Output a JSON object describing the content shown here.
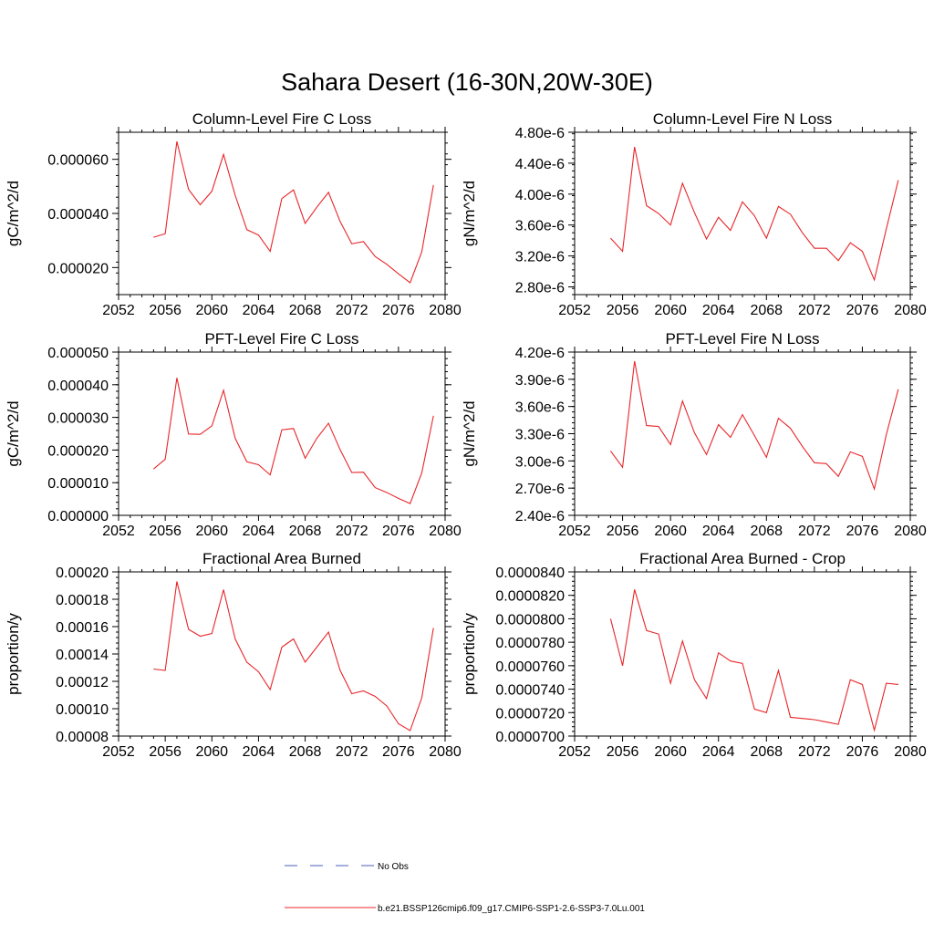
{
  "page_title": "Sahara Desert (16-30N,20W-30E)",
  "legend": [
    {
      "label": "No Obs",
      "color": "#4a5fc1",
      "dash": "dashed"
    },
    {
      "label": "b.e21.BSSP126cmip6.f09_g17.CMIP6-SSP1-2.6-SSP3-7.0Lu.001",
      "color": "#e8262a",
      "dash": "solid"
    }
  ],
  "chart_data": [
    {
      "type": "line",
      "title": "Column-Level Fire C Loss",
      "ylabel": "gC/m^2/d",
      "xlim": [
        2052,
        2080
      ],
      "ylim": [
        1e-05,
        7e-05
      ],
      "x_ticks": [
        "2052",
        "2056",
        "2060",
        "2064",
        "2068",
        "2072",
        "2076",
        "2080"
      ],
      "y_ticks": [
        {
          "v": 2e-05,
          "label": "0.000020"
        },
        {
          "v": 4e-05,
          "label": "0.000040"
        },
        {
          "v": 6e-05,
          "label": "0.000060"
        }
      ],
      "x": [
        2055,
        2056,
        2057,
        2058,
        2059,
        2060,
        2061,
        2062,
        2063,
        2064,
        2065,
        2066,
        2067,
        2068,
        2069,
        2070,
        2071,
        2072,
        2073,
        2074,
        2075,
        2076,
        2077,
        2078,
        2079
      ],
      "series": [
        {
          "color": "#e8262a",
          "values": [
            3.12e-05,
            3.25e-05,
            6.66e-05,
            4.89e-05,
            4.32e-05,
            4.82e-05,
            6.18e-05,
            4.67e-05,
            3.4e-05,
            3.2e-05,
            2.6e-05,
            4.55e-05,
            4.87e-05,
            3.63e-05,
            4.23e-05,
            4.78e-05,
            3.7e-05,
            2.88e-05,
            2.96e-05,
            2.41e-05,
            2.12e-05,
            1.77e-05,
            1.44e-05,
            2.58e-05,
            5.05e-05
          ]
        }
      ]
    },
    {
      "type": "line",
      "title": "Column-Level Fire N Loss",
      "ylabel": "gN/m^2/d",
      "xlim": [
        2052,
        2080
      ],
      "ylim": [
        2.7e-06,
        4.8e-06
      ],
      "x_ticks": [
        "2052",
        "2056",
        "2060",
        "2064",
        "2068",
        "2072",
        "2076",
        "2080"
      ],
      "y_ticks": [
        {
          "v": 2.8e-06,
          "label": "2.80e-6"
        },
        {
          "v": 3.2e-06,
          "label": "3.20e-6"
        },
        {
          "v": 3.6e-06,
          "label": "3.60e-6"
        },
        {
          "v": 4e-06,
          "label": "4.00e-6"
        },
        {
          "v": 4.4e-06,
          "label": "4.40e-6"
        },
        {
          "v": 4.8e-06,
          "label": "4.80e-6"
        }
      ],
      "x": [
        2055,
        2056,
        2057,
        2058,
        2059,
        2060,
        2061,
        2062,
        2063,
        2064,
        2065,
        2066,
        2067,
        2068,
        2069,
        2070,
        2071,
        2072,
        2073,
        2074,
        2075,
        2076,
        2077,
        2078,
        2079
      ],
      "series": [
        {
          "color": "#e8262a",
          "values": [
            3.43e-06,
            3.26e-06,
            4.61e-06,
            3.85e-06,
            3.75e-06,
            3.6e-06,
            4.14e-06,
            3.76e-06,
            3.42e-06,
            3.7e-06,
            3.53e-06,
            3.9e-06,
            3.72e-06,
            3.43e-06,
            3.84e-06,
            3.74e-06,
            3.5e-06,
            3.3e-06,
            3.3e-06,
            3.14e-06,
            3.37e-06,
            3.26e-06,
            2.89e-06,
            3.55e-06,
            4.18e-06
          ]
        }
      ]
    },
    {
      "type": "line",
      "title": "PFT-Level Fire C Loss",
      "ylabel": "gC/m^2/d",
      "xlim": [
        2052,
        2080
      ],
      "ylim": [
        0.0,
        5e-05
      ],
      "x_ticks": [
        "2052",
        "2056",
        "2060",
        "2064",
        "2068",
        "2072",
        "2076",
        "2080"
      ],
      "y_ticks": [
        {
          "v": 0.0,
          "label": "0.000000"
        },
        {
          "v": 1e-05,
          "label": "0.000010"
        },
        {
          "v": 2e-05,
          "label": "0.000020"
        },
        {
          "v": 3e-05,
          "label": "0.000030"
        },
        {
          "v": 4e-05,
          "label": "0.000040"
        },
        {
          "v": 5e-05,
          "label": "0.000050"
        }
      ],
      "x": [
        2055,
        2056,
        2057,
        2058,
        2059,
        2060,
        2061,
        2062,
        2063,
        2064,
        2065,
        2066,
        2067,
        2068,
        2069,
        2070,
        2071,
        2072,
        2073,
        2074,
        2075,
        2076,
        2077,
        2078,
        2079
      ],
      "series": [
        {
          "color": "#e8262a",
          "values": [
            1.42e-05,
            1.72e-05,
            4.21e-05,
            2.49e-05,
            2.48e-05,
            2.74e-05,
            3.83e-05,
            2.36e-05,
            1.64e-05,
            1.55e-05,
            1.24e-05,
            2.62e-05,
            2.66e-05,
            1.75e-05,
            2.36e-05,
            2.82e-05,
            2.01e-05,
            1.31e-05,
            1.32e-05,
            8.5e-06,
            7e-06,
            5.2e-06,
            3.6e-06,
            1.3e-05,
            3.05e-05
          ]
        }
      ]
    },
    {
      "type": "line",
      "title": "PFT-Level Fire N Loss",
      "ylabel": "gN/m^2/d",
      "xlim": [
        2052,
        2080
      ],
      "ylim": [
        2.4e-06,
        4.2e-06
      ],
      "x_ticks": [
        "2052",
        "2056",
        "2060",
        "2064",
        "2068",
        "2072",
        "2076",
        "2080"
      ],
      "y_ticks": [
        {
          "v": 2.4e-06,
          "label": "2.40e-6"
        },
        {
          "v": 2.7e-06,
          "label": "2.70e-6"
        },
        {
          "v": 3e-06,
          "label": "3.00e-6"
        },
        {
          "v": 3.3e-06,
          "label": "3.30e-6"
        },
        {
          "v": 3.6e-06,
          "label": "3.60e-6"
        },
        {
          "v": 3.9e-06,
          "label": "3.90e-6"
        },
        {
          "v": 4.2e-06,
          "label": "4.20e-6"
        }
      ],
      "x": [
        2055,
        2056,
        2057,
        2058,
        2059,
        2060,
        2061,
        2062,
        2063,
        2064,
        2065,
        2066,
        2067,
        2068,
        2069,
        2070,
        2071,
        2072,
        2073,
        2074,
        2075,
        2076,
        2077,
        2078,
        2079
      ],
      "series": [
        {
          "color": "#e8262a",
          "values": [
            3.11e-06,
            2.93e-06,
            4.1e-06,
            3.39e-06,
            3.38e-06,
            3.18e-06,
            3.66e-06,
            3.31e-06,
            3.07e-06,
            3.4e-06,
            3.26e-06,
            3.51e-06,
            3.28e-06,
            3.04e-06,
            3.47e-06,
            3.36e-06,
            3.16e-06,
            2.98e-06,
            2.97e-06,
            2.83e-06,
            3.1e-06,
            3.05e-06,
            2.69e-06,
            3.29e-06,
            3.79e-06
          ]
        }
      ]
    },
    {
      "type": "line",
      "title": "Fractional Area Burned",
      "ylabel": "proportion/y",
      "xlim": [
        2052,
        2080
      ],
      "ylim": [
        8e-05,
        0.0002
      ],
      "x_ticks": [
        "2052",
        "2056",
        "2060",
        "2064",
        "2068",
        "2072",
        "2076",
        "2080"
      ],
      "y_ticks": [
        {
          "v": 8e-05,
          "label": "0.00008"
        },
        {
          "v": 0.0001,
          "label": "0.00010"
        },
        {
          "v": 0.00012,
          "label": "0.00012"
        },
        {
          "v": 0.00014,
          "label": "0.00014"
        },
        {
          "v": 0.00016,
          "label": "0.00016"
        },
        {
          "v": 0.00018,
          "label": "0.00018"
        },
        {
          "v": 0.0002,
          "label": "0.00020"
        }
      ],
      "x": [
        2055,
        2056,
        2057,
        2058,
        2059,
        2060,
        2061,
        2062,
        2063,
        2064,
        2065,
        2066,
        2067,
        2068,
        2069,
        2070,
        2071,
        2072,
        2073,
        2074,
        2075,
        2076,
        2077,
        2078,
        2079
      ],
      "series": [
        {
          "color": "#e8262a",
          "values": [
            0.000129,
            0.000128,
            0.000193,
            0.000158,
            0.000153,
            0.000155,
            0.000187,
            0.000151,
            0.000134,
            0.000127,
            0.000114,
            0.000145,
            0.000151,
            0.000134,
            0.000145,
            0.000156,
            0.000128,
            0.000111,
            0.000113,
            0.000109,
            0.000102,
            8.9e-05,
            8.4e-05,
            0.000108,
            0.000159
          ]
        }
      ]
    },
    {
      "type": "line",
      "title": "Fractional Area Burned - Crop",
      "ylabel": "proportion/y",
      "xlim": [
        2052,
        2080
      ],
      "ylim": [
        7e-05,
        8.4e-05
      ],
      "x_ticks": [
        "2052",
        "2056",
        "2060",
        "2064",
        "2068",
        "2072",
        "2076",
        "2080"
      ],
      "y_ticks": [
        {
          "v": 7e-05,
          "label": "0.0000700"
        },
        {
          "v": 7.2e-05,
          "label": "0.0000720"
        },
        {
          "v": 7.4e-05,
          "label": "0.0000740"
        },
        {
          "v": 7.6e-05,
          "label": "0.0000760"
        },
        {
          "v": 7.8e-05,
          "label": "0.0000780"
        },
        {
          "v": 8e-05,
          "label": "0.0000800"
        },
        {
          "v": 8.2e-05,
          "label": "0.0000820"
        },
        {
          "v": 8.4e-05,
          "label": "0.0000840"
        }
      ],
      "x": [
        2055,
        2056,
        2057,
        2058,
        2059,
        2060,
        2061,
        2062,
        2063,
        2064,
        2065,
        2066,
        2067,
        2068,
        2069,
        2070,
        2071,
        2072,
        2073,
        2074,
        2075,
        2076,
        2077,
        2078,
        2079
      ],
      "series": [
        {
          "color": "#e8262a",
          "values": [
            8e-05,
            7.6e-05,
            8.25e-05,
            7.9e-05,
            7.87e-05,
            7.45e-05,
            7.81e-05,
            7.48e-05,
            7.32e-05,
            7.71e-05,
            7.64e-05,
            7.62e-05,
            7.23e-05,
            7.2e-05,
            7.56e-05,
            7.16e-05,
            7.15e-05,
            7.14e-05,
            7.12e-05,
            7.1e-05,
            7.48e-05,
            7.44e-05,
            7.05e-05,
            7.45e-05,
            7.44e-05
          ]
        }
      ]
    }
  ]
}
